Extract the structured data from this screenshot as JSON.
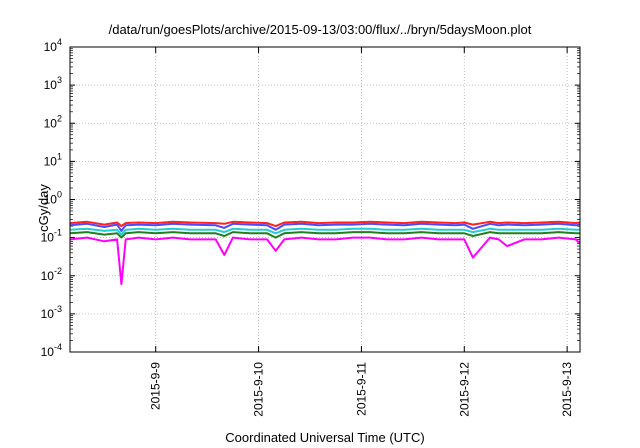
{
  "chart_data": {
    "type": "line",
    "title": "/data/run/goesPlots/archive/2015-09-13/03:00/flux/../bryn/5daysMoon.plot",
    "xlabel": "Coordinated Universal Time (UTC)",
    "ylabel": "cGy/day",
    "yscale": "log",
    "ylim": [
      0.0001,
      10000
    ],
    "xlim": [
      "2015-09-08 04:00",
      "2015-09-13 03:00"
    ],
    "grid": true,
    "y_ticks": [
      {
        "base": "10",
        "exp": "-4"
      },
      {
        "base": "10",
        "exp": "-3"
      },
      {
        "base": "10",
        "exp": "-2"
      },
      {
        "base": "10",
        "exp": "-1"
      },
      {
        "base": "10",
        "exp": "0"
      },
      {
        "base": "10",
        "exp": "1"
      },
      {
        "base": "10",
        "exp": "2"
      },
      {
        "base": "10",
        "exp": "3"
      },
      {
        "base": "10",
        "exp": "4"
      }
    ],
    "x_ticks": [
      "2015-9-9",
      "2015-9-10",
      "2015-9-11",
      "2015-9-12",
      "2015-9-13"
    ],
    "x": [
      "2015-09-08 04:00",
      "2015-09-08 08:00",
      "2015-09-08 12:00",
      "2015-09-08 15:00",
      "2015-09-08 16:00",
      "2015-09-08 17:00",
      "2015-09-08 20:00",
      "2015-09-09 00:00",
      "2015-09-09 04:00",
      "2015-09-09 08:00",
      "2015-09-09 14:00",
      "2015-09-09 16:00",
      "2015-09-09 18:00",
      "2015-09-09 22:00",
      "2015-09-10 02:00",
      "2015-09-10 04:00",
      "2015-09-10 06:00",
      "2015-09-10 10:00",
      "2015-09-10 14:00",
      "2015-09-10 18:00",
      "2015-09-10 22:00",
      "2015-09-11 02:00",
      "2015-09-11 06:00",
      "2015-09-11 10:00",
      "2015-09-11 14:00",
      "2015-09-11 18:00",
      "2015-09-11 22:00",
      "2015-09-12 00:00",
      "2015-09-12 02:00",
      "2015-09-12 06:00",
      "2015-09-12 08:00",
      "2015-09-12 10:00",
      "2015-09-12 14:00",
      "2015-09-12 18:00",
      "2015-09-12 22:00",
      "2015-09-13 02:00",
      "2015-09-13 03:00"
    ],
    "series": [
      {
        "color": "#ff2020",
        "values": [
          0.24,
          0.26,
          0.22,
          0.25,
          0.2,
          0.24,
          0.25,
          0.24,
          0.26,
          0.25,
          0.24,
          0.23,
          0.26,
          0.25,
          0.24,
          0.2,
          0.25,
          0.26,
          0.24,
          0.25,
          0.25,
          0.26,
          0.25,
          0.24,
          0.26,
          0.25,
          0.24,
          0.25,
          0.22,
          0.26,
          0.24,
          0.25,
          0.24,
          0.25,
          0.26,
          0.24,
          0.25
        ]
      },
      {
        "color": "#4a4aff",
        "values": [
          0.21,
          0.23,
          0.19,
          0.22,
          0.15,
          0.21,
          0.22,
          0.21,
          0.23,
          0.22,
          0.21,
          0.18,
          0.23,
          0.22,
          0.21,
          0.16,
          0.22,
          0.23,
          0.21,
          0.22,
          0.22,
          0.23,
          0.22,
          0.21,
          0.23,
          0.22,
          0.21,
          0.22,
          0.17,
          0.23,
          0.21,
          0.22,
          0.21,
          0.22,
          0.23,
          0.21,
          0.22
        ]
      },
      {
        "color": "#20d0d0",
        "values": [
          0.16,
          0.17,
          0.15,
          0.16,
          0.12,
          0.16,
          0.17,
          0.16,
          0.17,
          0.16,
          0.16,
          0.14,
          0.17,
          0.16,
          0.16,
          0.13,
          0.16,
          0.17,
          0.16,
          0.16,
          0.17,
          0.17,
          0.16,
          0.16,
          0.17,
          0.16,
          0.16,
          0.16,
          0.14,
          0.17,
          0.16,
          0.16,
          0.16,
          0.16,
          0.17,
          0.16,
          0.16
        ]
      },
      {
        "color": "#208020",
        "values": [
          0.13,
          0.14,
          0.12,
          0.13,
          0.1,
          0.13,
          0.14,
          0.13,
          0.14,
          0.13,
          0.13,
          0.11,
          0.14,
          0.13,
          0.13,
          0.1,
          0.13,
          0.14,
          0.13,
          0.13,
          0.14,
          0.14,
          0.13,
          0.13,
          0.14,
          0.13,
          0.13,
          0.13,
          0.11,
          0.14,
          0.13,
          0.13,
          0.13,
          0.13,
          0.14,
          0.13,
          0.13
        ]
      },
      {
        "color": "#ff00ff",
        "values": [
          0.09,
          0.1,
          0.08,
          0.09,
          0.006,
          0.09,
          0.1,
          0.09,
          0.1,
          0.09,
          0.09,
          0.035,
          0.1,
          0.09,
          0.09,
          0.045,
          0.09,
          0.1,
          0.09,
          0.09,
          0.1,
          0.1,
          0.09,
          0.09,
          0.1,
          0.09,
          0.09,
          0.09,
          0.03,
          0.1,
          0.09,
          0.06,
          0.09,
          0.09,
          0.1,
          0.09,
          0.07
        ]
      }
    ]
  }
}
